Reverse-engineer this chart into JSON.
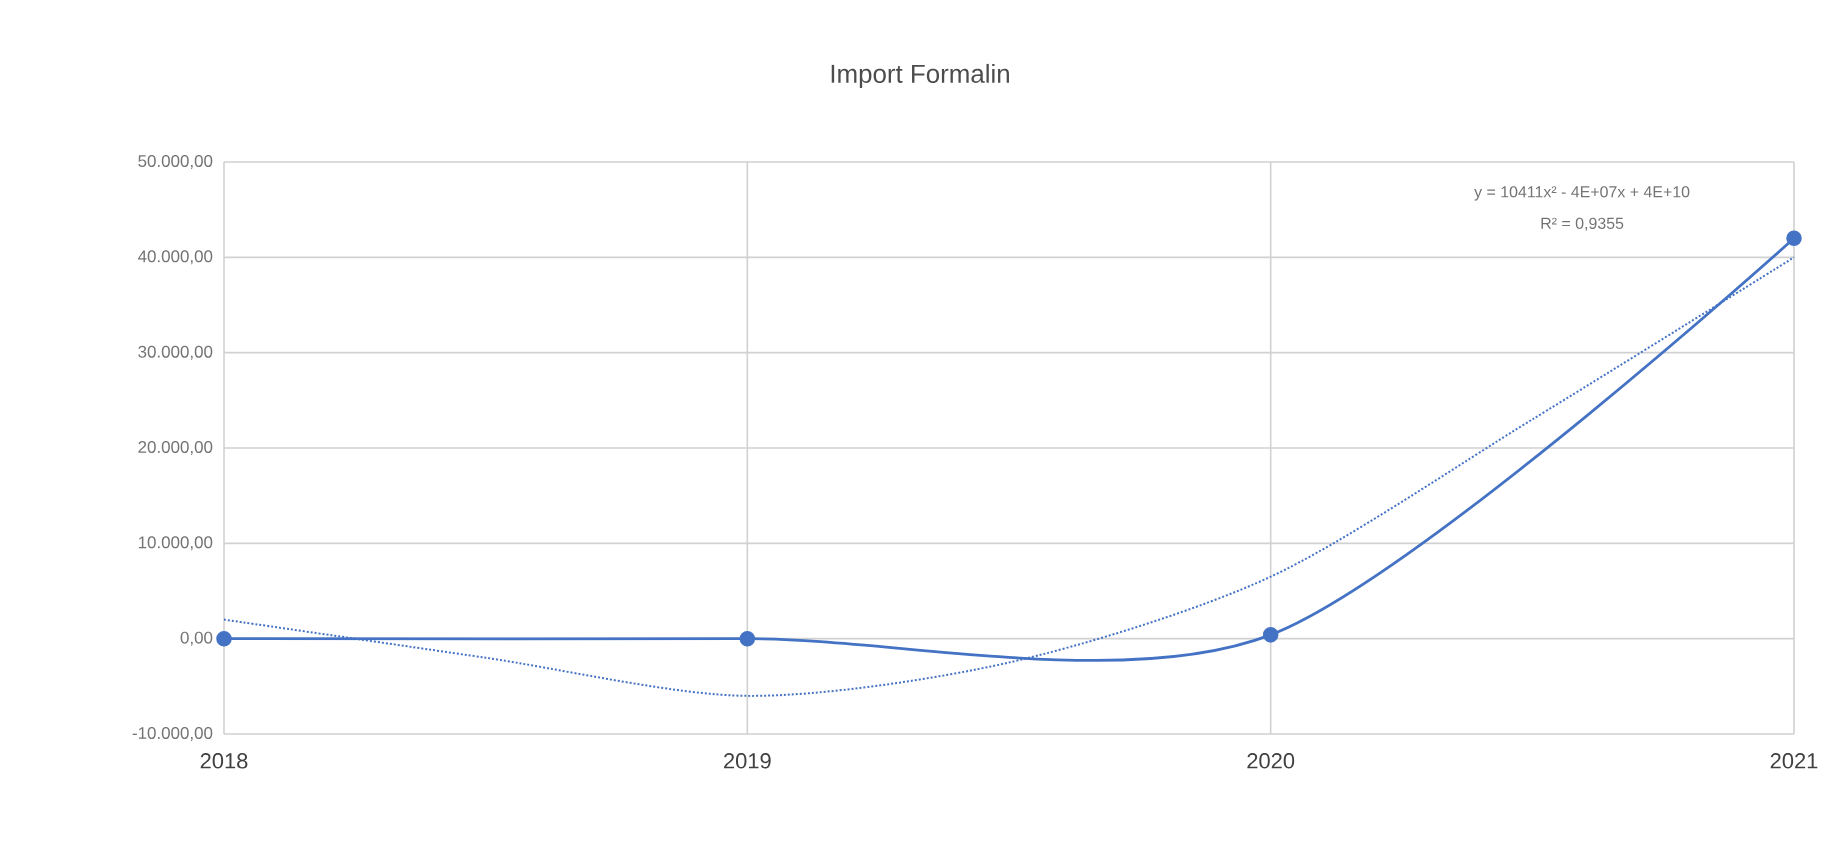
{
  "chart_data": {
    "type": "line",
    "title": "Import Formalin",
    "x": [
      2018,
      2019,
      2020,
      2021
    ],
    "series": [
      {
        "color": "#4472c4",
        "values": [
          0,
          0,
          400,
          42000
        ],
        "marker": "circle",
        "line_style": "solid"
      },
      {
        "type": "line",
        "color": "#4472c4",
        "x": [
          2018,
          2018.5,
          2019,
          2019.5,
          2020,
          2020.5,
          2021
        ],
        "values": [
          2000,
          -2000,
          -6000,
          -2500,
          6500,
          23000,
          40000
        ],
        "marker": "none",
        "line_style": "dotted"
      }
    ],
    "xlim": [
      2018,
      2021
    ],
    "xticks": [
      2018,
      2019,
      2020,
      2021
    ],
    "ylim": [
      -10000,
      50000
    ],
    "yticks": [
      {
        "value": -10000,
        "label": "-10.000,00"
      },
      {
        "value": 0,
        "label": "0,00"
      },
      {
        "value": 10000,
        "label": "10.000,00"
      },
      {
        "value": 20000,
        "label": "20.000,00"
      },
      {
        "value": 30000,
        "label": "30.000,00"
      },
      {
        "value": 40000,
        "label": "40.000,00"
      },
      {
        "value": 50000,
        "label": "50.000,00"
      }
    ],
    "grid": true,
    "annotations": [
      "y = 10411x² - 4E+07x + 4E+10",
      "R² = 0,9355"
    ]
  }
}
